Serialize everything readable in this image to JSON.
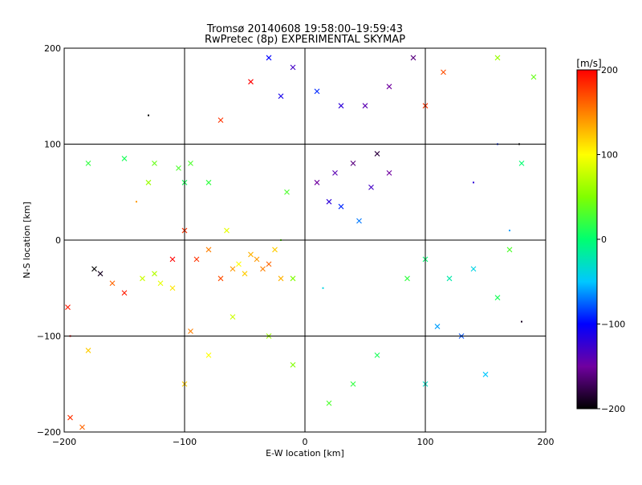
{
  "chart_data": {
    "type": "scatter",
    "title": "Tromsø 20140608 19:58:00–19:59:43",
    "subtitle": "RwPretec (8p) EXPERIMENTAL SKYMAP",
    "xlabel": "E-W location [km]",
    "ylabel": "N-S location [km]",
    "xlim": [
      -200,
      200
    ],
    "ylim": [
      -200,
      200
    ],
    "x_ticks": [
      -200,
      -100,
      0,
      100,
      200
    ],
    "y_ticks": [
      -200,
      -100,
      0,
      100,
      200
    ],
    "x_tick_labels": [
      "−200",
      "−100",
      "0",
      "100",
      "200"
    ],
    "y_tick_labels": [
      "−200",
      "−100",
      "0",
      "100",
      "200"
    ],
    "grid": true,
    "colorbar": {
      "label": "[m/s]",
      "range": [
        -200,
        200
      ],
      "ticks": [
        200,
        100,
        0,
        -100,
        -200
      ],
      "tick_labels": [
        "200",
        "100",
        "0",
        "−100",
        "−200"
      ],
      "stops": [
        "#000000",
        "#7000a0",
        "#0000ff",
        "#00c8ff",
        "#00ff70",
        "#80ff00",
        "#ffff00",
        "#ff8000",
        "#ff0000"
      ]
    },
    "markers": {
      "low_power": "dot",
      "high_power": "x"
    },
    "series": [
      {
        "marker": "x",
        "points": [
          [
            -40,
            -20,
            140
          ],
          [
            -35,
            -30,
            150
          ],
          [
            -45,
            -15,
            130
          ],
          [
            -50,
            -35,
            120
          ],
          [
            -30,
            -25,
            160
          ],
          [
            -55,
            -25,
            100
          ],
          [
            -120,
            -45,
            90
          ],
          [
            -135,
            -40,
            80
          ],
          [
            -110,
            -50,
            110
          ],
          [
            -125,
            -35,
            70
          ],
          [
            -80,
            -10,
            150
          ],
          [
            -70,
            -40,
            170
          ],
          [
            -60,
            -30,
            140
          ],
          [
            -90,
            -20,
            180
          ],
          [
            -20,
            -40,
            130
          ],
          [
            -45,
            165,
            200
          ],
          [
            -70,
            125,
            180
          ],
          [
            -130,
            60,
            60
          ],
          [
            -150,
            85,
            10
          ],
          [
            -125,
            80,
            40
          ],
          [
            -95,
            80,
            30
          ],
          [
            -80,
            60,
            20
          ],
          [
            -160,
            -45,
            160
          ],
          [
            -175,
            -30,
            -200
          ],
          [
            -170,
            -35,
            -190
          ],
          [
            -110,
            -20,
            200
          ],
          [
            -100,
            10,
            180
          ],
          [
            -25,
            -10,
            120
          ],
          [
            -65,
            10,
            90
          ],
          [
            -15,
            50,
            30
          ],
          [
            10,
            60,
            -150
          ],
          [
            20,
            40,
            -120
          ],
          [
            25,
            70,
            -140
          ],
          [
            40,
            80,
            -160
          ],
          [
            60,
            90,
            -180
          ],
          [
            70,
            70,
            -150
          ],
          [
            55,
            55,
            -130
          ],
          [
            45,
            20,
            -70
          ],
          [
            30,
            35,
            -90
          ],
          [
            -10,
            180,
            -130
          ],
          [
            -20,
            150,
            -110
          ],
          [
            30,
            140,
            -120
          ],
          [
            50,
            140,
            -140
          ],
          [
            70,
            160,
            -150
          ],
          [
            90,
            190,
            -160
          ],
          [
            -30,
            190,
            -100
          ],
          [
            10,
            155,
            -90
          ],
          [
            85,
            -40,
            20
          ],
          [
            100,
            -20,
            0
          ],
          [
            120,
            -40,
            -20
          ],
          [
            140,
            -30,
            -40
          ],
          [
            110,
            -90,
            -60
          ],
          [
            130,
            -100,
            -80
          ],
          [
            150,
            -140,
            -50
          ],
          [
            100,
            -150,
            -30
          ],
          [
            60,
            -120,
            10
          ],
          [
            40,
            -150,
            20
          ],
          [
            20,
            -170,
            30
          ],
          [
            -10,
            -130,
            50
          ],
          [
            -30,
            -100,
            60
          ],
          [
            -60,
            -80,
            80
          ],
          [
            -80,
            -120,
            100
          ],
          [
            -95,
            -95,
            150
          ],
          [
            -100,
            -150,
            120
          ],
          [
            160,
            -60,
            10
          ],
          [
            170,
            -10,
            30
          ],
          [
            180,
            80,
            0
          ],
          [
            190,
            170,
            40
          ],
          [
            160,
            190,
            60
          ],
          [
            100,
            140,
            180
          ],
          [
            115,
            175,
            170
          ],
          [
            -150,
            -55,
            190
          ],
          [
            -195,
            -185,
            180
          ],
          [
            -185,
            -195,
            160
          ],
          [
            -197,
            -70,
            190
          ],
          [
            -180,
            -115,
            120
          ],
          [
            -180,
            80,
            20
          ],
          [
            -105,
            75,
            30
          ],
          [
            -100,
            60,
            10
          ],
          [
            -10,
            -40,
            50
          ]
        ]
      },
      {
        "marker": "dot",
        "points": [
          [
            -20,
            0,
            40
          ],
          [
            15,
            -50,
            -40
          ],
          [
            160,
            100,
            -90
          ],
          [
            178,
            100,
            -200
          ],
          [
            180,
            -85,
            -190
          ],
          [
            -130,
            130,
            -200
          ],
          [
            -195,
            -100,
            200
          ],
          [
            -140,
            40,
            140
          ],
          [
            140,
            60,
            -120
          ],
          [
            170,
            10,
            -60
          ]
        ]
      }
    ]
  }
}
